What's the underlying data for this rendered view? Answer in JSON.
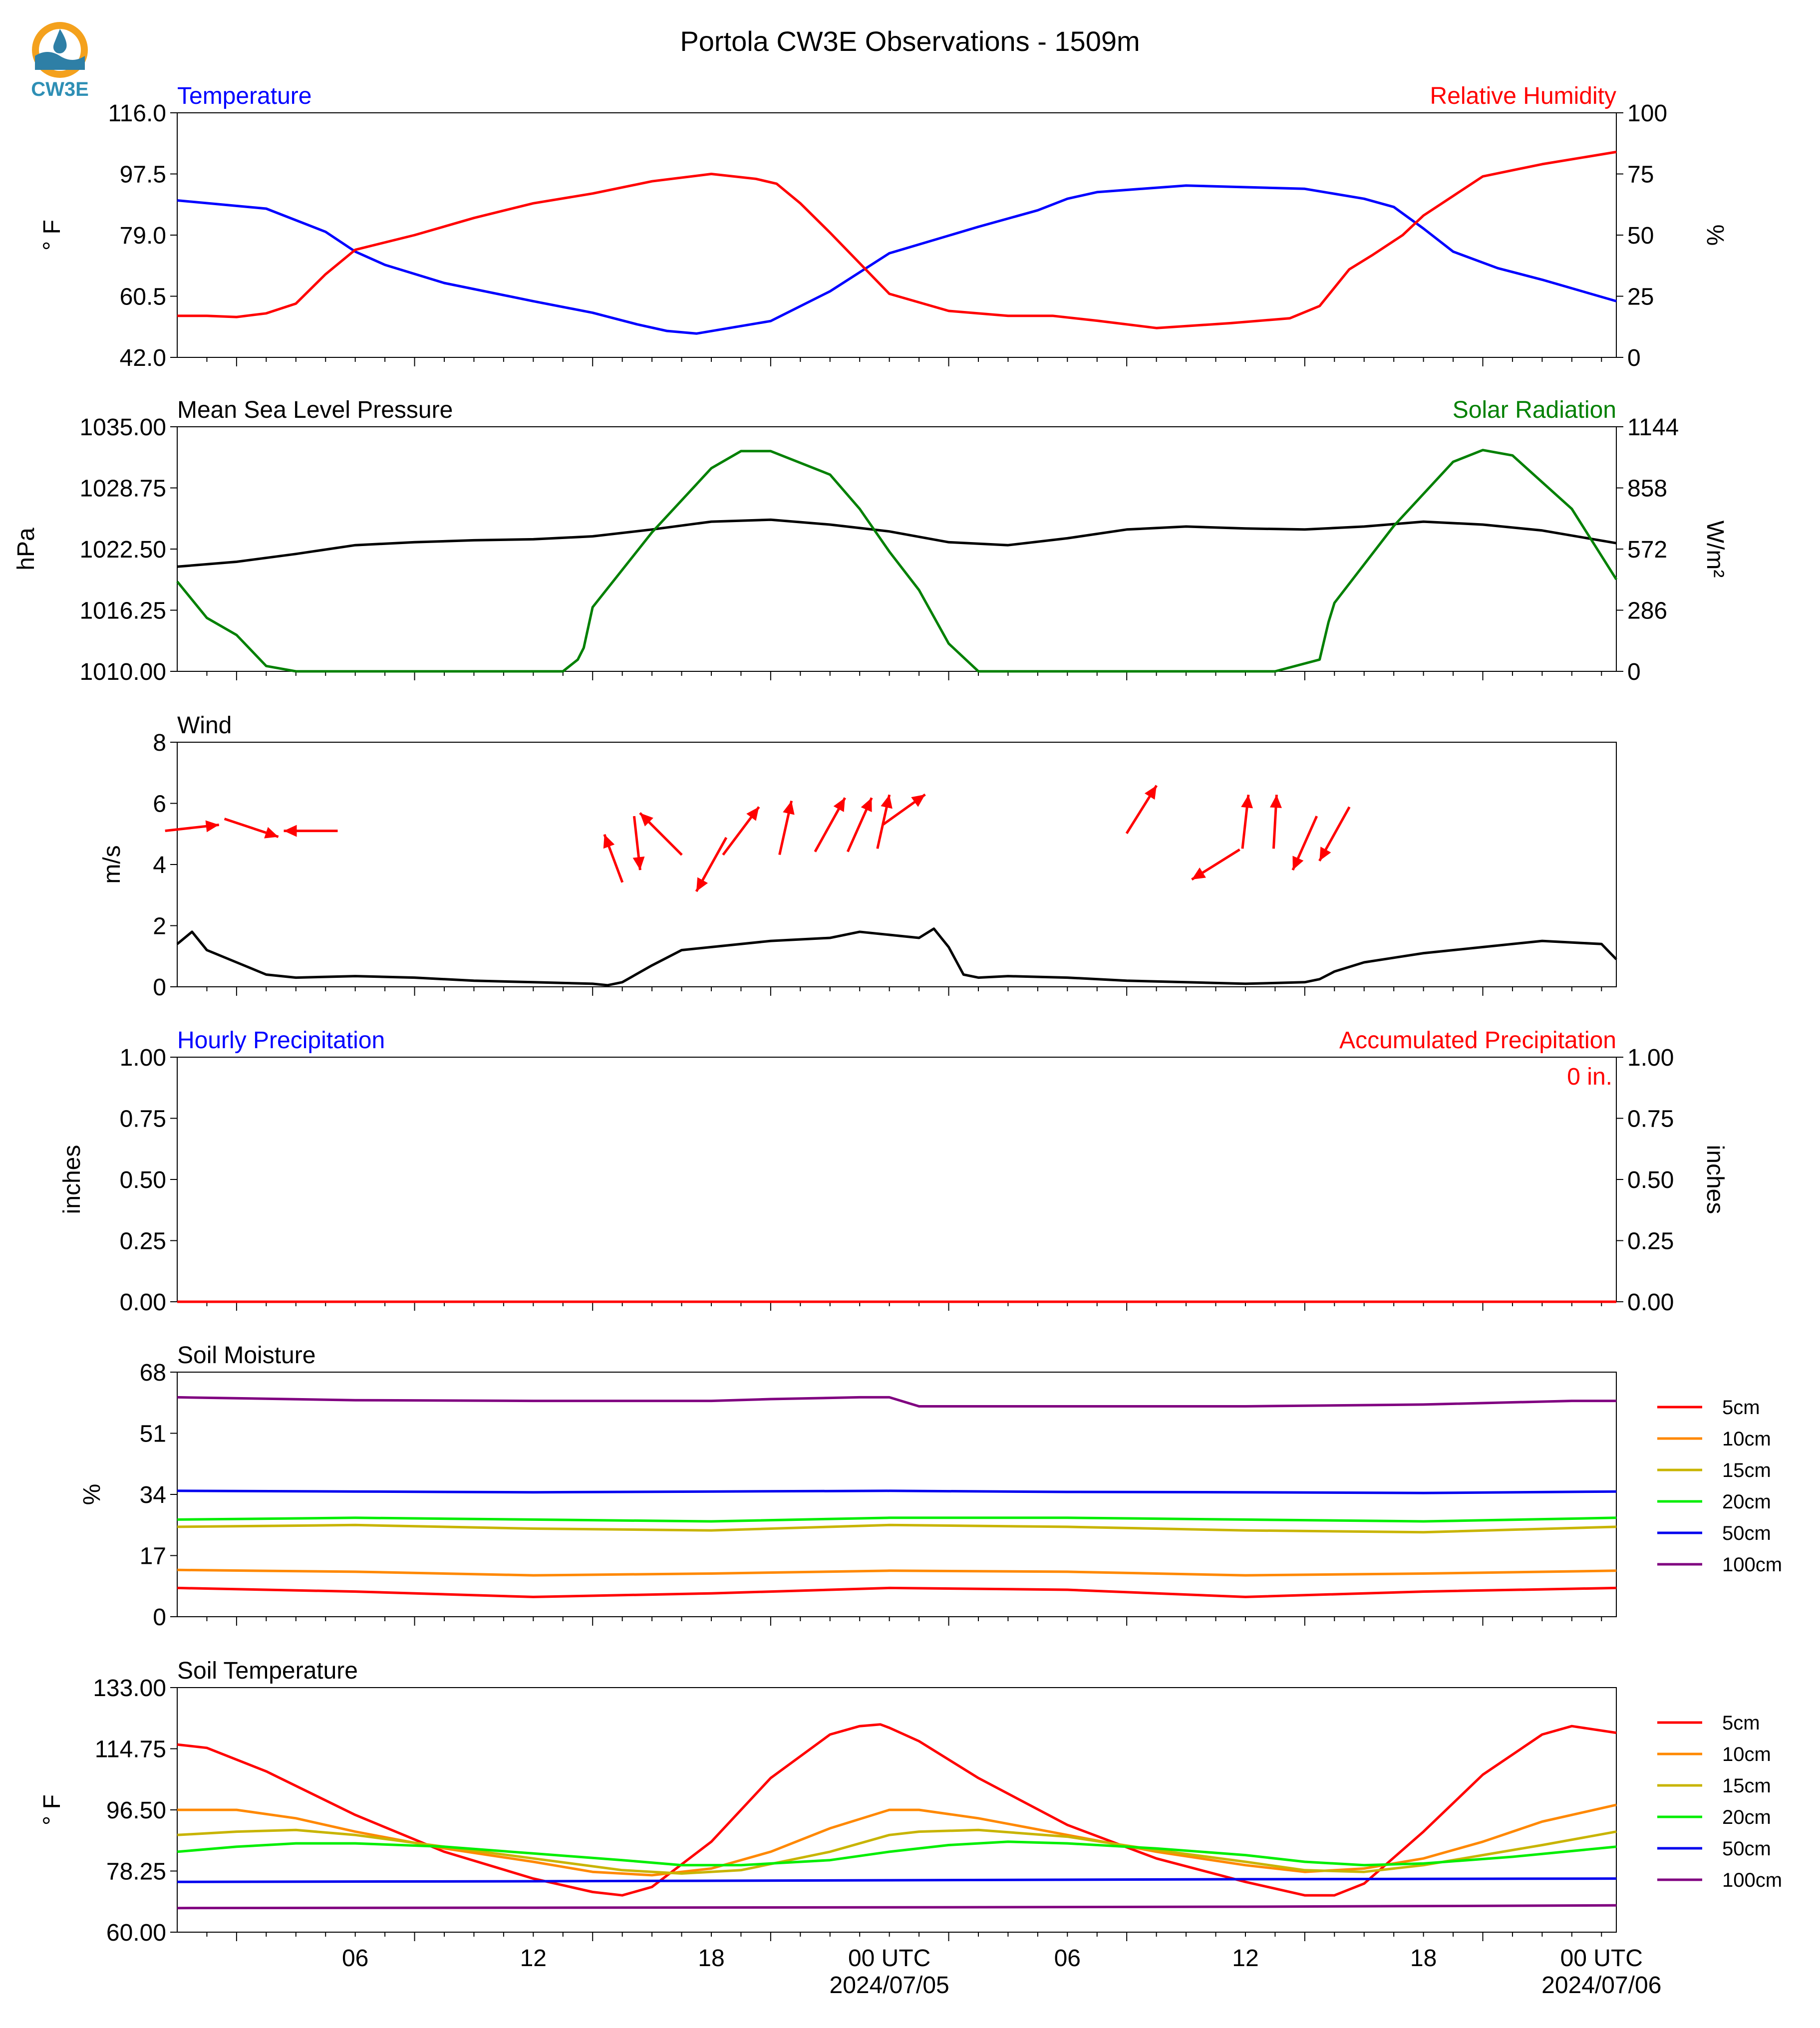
{
  "title": "Portola CW3E Observations - 1509m",
  "logo": {
    "text": "CW3E",
    "colors": {
      "ring": "#f4a11d",
      "drop": "#2e7fa6",
      "text": "#2e8fb5"
    }
  },
  "x_axis": {
    "ticks": [
      "06",
      "12",
      "18",
      "00 UTC",
      "06",
      "12",
      "18",
      "00 UTC"
    ],
    "dates": [
      "2024/07/05",
      "2024/07/06"
    ]
  },
  "chart_data": [
    {
      "type": "line",
      "id": "temp_rh",
      "left_title": "Temperature",
      "right_title": "Relative Humidity",
      "ylabel": "° F",
      "y2label": "%",
      "ylim": [
        42.0,
        116.0
      ],
      "y2lim": [
        0,
        100
      ],
      "yticks": [
        "42.0",
        "60.5",
        "79.0",
        "97.5",
        "116.0"
      ],
      "y2ticks": [
        "0",
        "25",
        "50",
        "75",
        "100"
      ],
      "series": [
        {
          "axis": "left",
          "color": "#0000ff",
          "x": [
            0,
            3,
            5,
            6,
            7,
            9,
            12,
            14,
            15.5,
            16.5,
            17.5,
            20,
            22,
            24,
            27,
            29,
            30,
            31,
            34,
            38,
            40,
            41,
            42,
            43,
            44.5,
            46,
            48.5
          ],
          "y": [
            89.5,
            87,
            80,
            74,
            70,
            64.5,
            59,
            55.5,
            52,
            50,
            49.2,
            53,
            62,
            73.5,
            81.5,
            86.5,
            90,
            92,
            94,
            93,
            90,
            87.5,
            81,
            74,
            69,
            65.5,
            59
          ]
        },
        {
          "axis": "right",
          "color": "#ff0000",
          "x": [
            0,
            1,
            2,
            3,
            4,
            5,
            6,
            8,
            10,
            12,
            14,
            16,
            18,
            19.5,
            20.2,
            21,
            22,
            24,
            26,
            28,
            29.5,
            31,
            33,
            35.5,
            37.5,
            38.5,
            39.5,
            40.3,
            41.3,
            42,
            43,
            44,
            46,
            48.5
          ],
          "y": [
            17,
            17,
            16.5,
            18,
            22,
            34,
            44,
            50,
            57,
            63,
            67,
            72,
            75,
            73,
            71,
            63,
            51,
            26,
            19,
            17,
            17,
            15,
            12,
            14,
            16,
            21,
            36,
            42,
            50,
            58,
            66,
            74,
            79,
            84
          ]
        }
      ]
    },
    {
      "type": "line",
      "id": "pressure_solar",
      "left_title": "Mean Sea Level Pressure",
      "right_title": "Solar Radiation",
      "ylabel": "hPa",
      "y2label": "W/m²",
      "ylim": [
        1010.0,
        1035.0
      ],
      "y2lim": [
        0,
        1144
      ],
      "yticks": [
        "1010.00",
        "1016.25",
        "1022.50",
        "1028.75",
        "1035.00"
      ],
      "y2ticks": [
        "0",
        "286",
        "572",
        "858",
        "1144"
      ],
      "series": [
        {
          "axis": "left",
          "color": "#000000",
          "x": [
            0,
            2,
            4,
            6,
            8,
            10,
            12,
            14,
            16,
            18,
            20,
            22,
            24,
            26,
            28,
            30,
            32,
            34,
            36,
            38,
            40,
            42,
            44,
            46,
            48.5
          ],
          "y": [
            1020.7,
            1021.2,
            1022.0,
            1022.9,
            1023.2,
            1023.4,
            1023.5,
            1023.8,
            1024.5,
            1025.3,
            1025.5,
            1025.0,
            1024.3,
            1023.2,
            1022.9,
            1023.6,
            1024.5,
            1024.8,
            1024.6,
            1024.5,
            1024.8,
            1025.3,
            1025.0,
            1024.4,
            1023.1
          ]
        },
        {
          "axis": "right",
          "color": "#008000",
          "x": [
            0,
            1,
            2,
            3,
            4,
            13,
            13.5,
            13.7,
            14,
            16,
            18,
            19,
            20,
            22,
            23,
            24,
            25,
            26,
            27,
            28,
            30,
            31,
            32,
            34,
            37,
            38.5,
            38.8,
            39,
            41,
            43,
            44,
            45,
            47,
            48.5
          ],
          "y": [
            420,
            250,
            170,
            25,
            0,
            0,
            55,
            110,
            300,
            650,
            950,
            1030,
            1030,
            920,
            760,
            560,
            380,
            130,
            0,
            0,
            0,
            0,
            0,
            0,
            0,
            55,
            230,
            320,
            680,
            980,
            1035,
            1010,
            760,
            430
          ]
        }
      ]
    },
    {
      "type": "line",
      "id": "wind",
      "left_title": "Wind",
      "ylabel": "m/s",
      "ylim": [
        0,
        8
      ],
      "yticks": [
        "0",
        "2",
        "4",
        "6",
        "8"
      ],
      "series": [
        {
          "color": "#000000",
          "x": [
            0,
            0.5,
            1,
            2,
            3,
            4,
            6,
            8,
            10,
            12,
            14,
            14.5,
            15,
            16,
            17,
            18,
            20,
            22,
            23,
            24,
            25,
            25.5,
            26,
            26.5,
            27,
            28,
            30,
            32,
            34,
            36,
            38,
            38.5,
            39,
            40,
            42,
            44,
            46,
            48,
            48.5
          ],
          "y": [
            1.4,
            1.8,
            1.2,
            0.8,
            0.4,
            0.3,
            0.35,
            0.3,
            0.2,
            0.15,
            0.1,
            0.05,
            0.15,
            0.7,
            1.2,
            1.3,
            1.5,
            1.6,
            1.8,
            1.7,
            1.6,
            1.9,
            1.3,
            0.4,
            0.3,
            0.35,
            0.3,
            0.2,
            0.15,
            0.1,
            0.15,
            0.25,
            0.5,
            0.8,
            1.1,
            1.3,
            1.5,
            1.4,
            0.9
          ]
        },
        {
          "color": "#ff0000",
          "kind": "wind_barbs_as_arrows",
          "x": [
            0.5,
            2.5,
            4.5,
            14.7,
            15.5,
            16.3,
            18,
            19,
            20.5,
            22,
            23,
            23.8,
            24.5,
            32.5,
            35,
            36,
            37,
            38,
            39
          ],
          "y": [
            5.2,
            5.2,
            5.1,
            4.2,
            4.7,
            5.0,
            4.0,
            5.1,
            5.2,
            5.3,
            5.3,
            5.4,
            5.8,
            5.8,
            4.0,
            5.4,
            5.4,
            4.7,
            5.0
          ],
          "u": [
            0.9,
            0.9,
            -0.9,
            -0.3,
            0.1,
            -0.7,
            -0.5,
            0.6,
            0.2,
            0.5,
            0.4,
            0.2,
            0.7,
            0.5,
            -0.8,
            0.1,
            0.05,
            -0.4,
            -0.5
          ],
          "v": [
            0.1,
            -0.3,
            0.0,
            0.8,
            -0.9,
            0.7,
            -0.9,
            0.8,
            0.9,
            0.9,
            0.9,
            0.9,
            0.5,
            0.8,
            -0.5,
            0.9,
            0.9,
            -0.9,
            -0.9
          ]
        }
      ]
    },
    {
      "type": "line",
      "id": "precip",
      "left_title": "Hourly Precipitation",
      "right_title": "Accumulated Precipitation",
      "annotation": "0 in.",
      "ylabel": "inches",
      "y2label": "inches",
      "ylim": [
        0,
        1.0
      ],
      "y2lim": [
        0,
        1.0
      ],
      "yticks": [
        "0.00",
        "0.25",
        "0.50",
        "0.75",
        "1.00"
      ],
      "y2ticks": [
        "0.00",
        "0.25",
        "0.50",
        "0.75",
        "1.00"
      ],
      "series": [
        {
          "axis": "left",
          "color": "#0000ff",
          "x": [
            0,
            48.5
          ],
          "y": [
            0,
            0
          ]
        },
        {
          "axis": "right",
          "color": "#ff0000",
          "x": [
            0,
            48.5
          ],
          "y": [
            0,
            0
          ]
        }
      ]
    },
    {
      "type": "line",
      "id": "soil_moisture",
      "left_title": "Soil Moisture",
      "ylabel": "%",
      "ylim": [
        0,
        68
      ],
      "yticks": [
        "0",
        "17",
        "34",
        "51",
        "68"
      ],
      "legend": [
        "5cm",
        "10cm",
        "15cm",
        "20cm",
        "50cm",
        "100cm"
      ],
      "series": [
        {
          "name": "5cm",
          "color": "#ff0000",
          "x": [
            0,
            6,
            12,
            18,
            24,
            30,
            36,
            42,
            48.5
          ],
          "y": [
            8,
            7,
            5.5,
            6.5,
            8,
            7.5,
            5.5,
            7,
            8
          ]
        },
        {
          "name": "10cm",
          "color": "#ff8800",
          "x": [
            0,
            6,
            12,
            18,
            24,
            30,
            36,
            42,
            48.5
          ],
          "y": [
            13,
            12.5,
            11.5,
            12,
            12.8,
            12.5,
            11.5,
            12,
            12.8
          ]
        },
        {
          "name": "15cm",
          "color": "#c8b400",
          "x": [
            0,
            6,
            12,
            18,
            24,
            30,
            36,
            42,
            48.5
          ],
          "y": [
            25,
            25.5,
            24.5,
            24,
            25.5,
            25,
            24,
            23.5,
            25
          ]
        },
        {
          "name": "20cm",
          "color": "#00ee00",
          "x": [
            0,
            6,
            12,
            18,
            24,
            30,
            36,
            42,
            48.5
          ],
          "y": [
            27,
            27.5,
            27,
            26.5,
            27.5,
            27.5,
            27,
            26.5,
            27.5
          ]
        },
        {
          "name": "50cm",
          "color": "#0000ee",
          "x": [
            0,
            6,
            12,
            18,
            24,
            30,
            36,
            42,
            48.5
          ],
          "y": [
            35,
            34.8,
            34.6,
            34.8,
            35,
            34.7,
            34.6,
            34.4,
            34.8
          ]
        },
        {
          "name": "100cm",
          "color": "#800080",
          "x": [
            0,
            6,
            12,
            18,
            20,
            23,
            24,
            25,
            30,
            36,
            42,
            47,
            48.5
          ],
          "y": [
            61,
            60.2,
            60,
            60,
            60.5,
            61,
            61,
            58.5,
            58.5,
            58.5,
            59,
            60,
            60
          ]
        }
      ]
    },
    {
      "type": "line",
      "id": "soil_temperature",
      "left_title": "Soil Temperature",
      "ylabel": "° F",
      "ylim": [
        60.0,
        133.0
      ],
      "yticks": [
        "60.00",
        "78.25",
        "96.50",
        "114.75",
        "133.00"
      ],
      "legend": [
        "5cm",
        "10cm",
        "15cm",
        "20cm",
        "50cm",
        "100cm"
      ],
      "series": [
        {
          "name": "5cm",
          "color": "#ff0000",
          "x": [
            0,
            1,
            3,
            6,
            9,
            12,
            14,
            15,
            16,
            18,
            20,
            22,
            23,
            23.7,
            24,
            25,
            27,
            30,
            33,
            36,
            38,
            39,
            40,
            42,
            44,
            46,
            47,
            48.5
          ],
          "y": [
            116,
            115,
            108,
            95,
            84,
            76,
            72,
            71,
            73.5,
            87,
            106,
            119,
            121.5,
            122,
            121,
            117,
            106,
            92,
            82,
            75,
            71,
            71,
            74.5,
            90,
            107,
            119,
            121.5,
            119.5
          ]
        },
        {
          "name": "10cm",
          "color": "#ff8800",
          "x": [
            0,
            2,
            4,
            6,
            9,
            12,
            14,
            16,
            18,
            20,
            22,
            24,
            25,
            27,
            30,
            33,
            36,
            38,
            40,
            42,
            44,
            46,
            48.5
          ],
          "y": [
            96.5,
            96.5,
            94,
            90,
            85,
            81,
            78,
            77,
            79,
            84,
            91,
            96.5,
            96.5,
            94,
            89,
            84,
            80,
            78,
            79,
            82,
            87,
            93,
            98
          ]
        },
        {
          "name": "15cm",
          "color": "#c8b400",
          "x": [
            0,
            2,
            4,
            6,
            9,
            12,
            15,
            17,
            19,
            22,
            24,
            25,
            27,
            30,
            33,
            36,
            38,
            40,
            42,
            44,
            46,
            48.5
          ],
          "y": [
            89,
            90,
            90.5,
            89,
            85.5,
            82,
            78.5,
            77.5,
            78.5,
            84,
            89,
            90,
            90.5,
            88.5,
            84.5,
            81,
            78.5,
            78,
            80,
            83,
            86,
            90
          ]
        },
        {
          "name": "20cm",
          "color": "#00ee00",
          "x": [
            0,
            2,
            4,
            6,
            9,
            12,
            15,
            17,
            19,
            22,
            24,
            26,
            28,
            30,
            33,
            36,
            38,
            40,
            42,
            45,
            48.5
          ],
          "y": [
            84,
            85.5,
            86.5,
            86.5,
            85.5,
            83.5,
            81.5,
            80,
            80,
            81.5,
            84,
            86,
            87,
            86.5,
            85,
            83,
            81,
            80,
            80.5,
            82.5,
            85.5
          ]
        },
        {
          "name": "50cm",
          "color": "#0000ee",
          "x": [
            0,
            12,
            24,
            36,
            48.5
          ],
          "y": [
            75,
            75.2,
            75.5,
            75.8,
            76
          ]
        },
        {
          "name": "100cm",
          "color": "#800080",
          "x": [
            0,
            12,
            24,
            36,
            48.5
          ],
          "y": [
            67.2,
            67.3,
            67.4,
            67.6,
            68
          ]
        }
      ]
    }
  ]
}
